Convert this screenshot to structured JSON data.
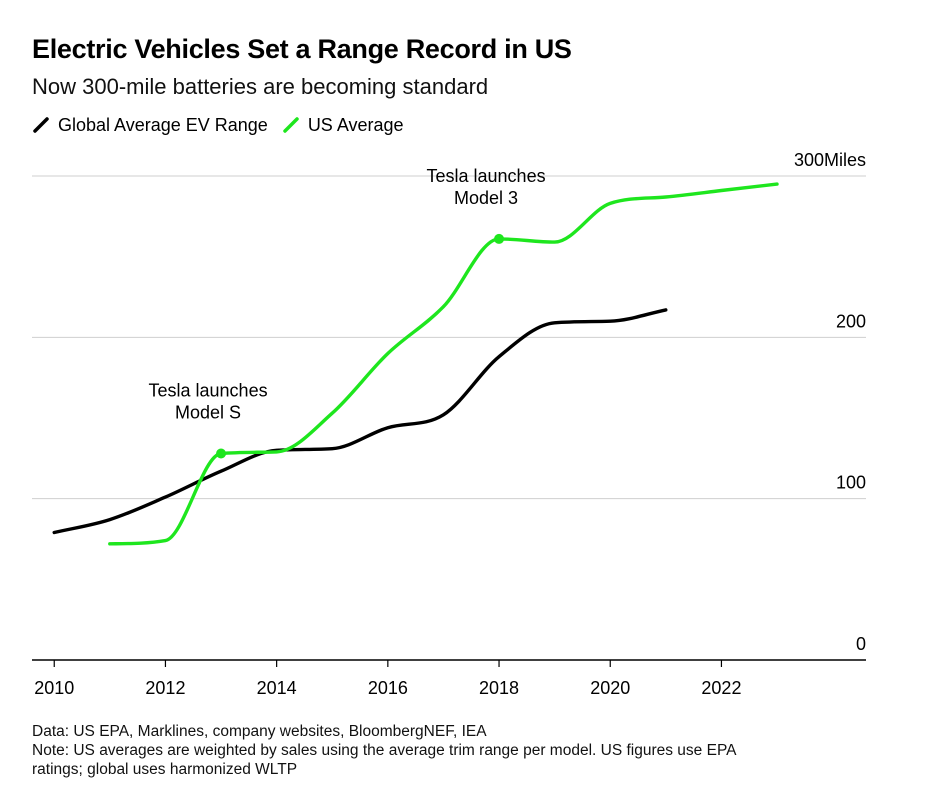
{
  "title": "Electric Vehicles Set a Range Record in US",
  "subtitle": "Now 300-mile batteries are becoming standard",
  "legend": [
    {
      "label": "Global Average EV Range",
      "color": "#000000"
    },
    {
      "label": "US Average",
      "color": "#1ee61e"
    }
  ],
  "notes": {
    "source": "Data: US EPA, Marklines, company websites, BloombergNEF, IEA",
    "note_line1": "Note: US averages are weighted by sales using the average trim range per model. US figures use EPA",
    "note_line2": "ratings; global uses harmonized WLTP"
  },
  "chart_data": {
    "type": "line",
    "title": "Electric Vehicles Set a Range Record in US",
    "subtitle": "Now 300-mile batteries are becoming standard",
    "y_unit": "Miles",
    "xlim": [
      2009.6,
      2024.6
    ],
    "ylim": [
      0,
      300
    ],
    "x_ticks": [
      2010,
      2012,
      2014,
      2016,
      2018,
      2020,
      2022
    ],
    "y_ticks": [
      0,
      100,
      200,
      300
    ],
    "grid": true,
    "legend_position": "top-left",
    "series": [
      {
        "name": "Global Average EV Range",
        "color": "#000000",
        "x": [
          2010,
          2011,
          2012,
          2013,
          2014,
          2015,
          2016,
          2017,
          2018,
          2019,
          2020,
          2021
        ],
        "y": [
          79,
          87,
          101,
          117,
          130,
          131,
          144,
          152,
          188,
          209,
          210,
          217
        ]
      },
      {
        "name": "US Average",
        "color": "#1ee61e",
        "x": [
          2011,
          2012,
          2013,
          2014,
          2015,
          2016,
          2017,
          2018,
          2019,
          2020,
          2021,
          2022,
          2023
        ],
        "y": [
          72,
          74,
          128,
          129,
          153,
          190,
          219,
          261,
          259,
          283,
          287,
          291,
          295
        ]
      }
    ],
    "annotations": [
      {
        "series": "US Average",
        "x": 2013,
        "y": 128,
        "lines": [
          "Tesla launches",
          "Model S"
        ]
      },
      {
        "series": "US Average",
        "x": 2018,
        "y": 261,
        "lines": [
          "Tesla launches",
          "Model 3"
        ]
      }
    ]
  }
}
